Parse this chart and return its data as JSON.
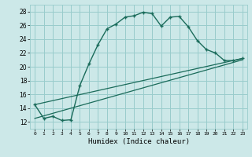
{
  "title": "",
  "xlabel": "Humidex (Indice chaleur)",
  "background_color": "#cce8e8",
  "grid_color": "#99cccc",
  "line_color": "#1a6b5a",
  "xlim": [
    -0.5,
    23.5
  ],
  "ylim": [
    11,
    29
  ],
  "xticks": [
    0,
    1,
    2,
    3,
    4,
    5,
    6,
    7,
    8,
    9,
    10,
    11,
    12,
    13,
    14,
    15,
    16,
    17,
    18,
    19,
    20,
    21,
    22,
    23
  ],
  "yticks": [
    12,
    14,
    16,
    18,
    20,
    22,
    24,
    26,
    28
  ],
  "series1_x": [
    0,
    1,
    2,
    3,
    4,
    5,
    6,
    7,
    8,
    9,
    10,
    11,
    12,
    13,
    14,
    15,
    16,
    17,
    18,
    19,
    20,
    21,
    22,
    23
  ],
  "series1_y": [
    14.5,
    12.5,
    12.8,
    12.2,
    12.3,
    17.3,
    20.4,
    23.2,
    25.5,
    26.2,
    27.2,
    27.4,
    27.9,
    27.7,
    25.9,
    27.2,
    27.3,
    25.8,
    23.8,
    22.5,
    22.0,
    20.9,
    20.9,
    21.2
  ],
  "series2_x": [
    0,
    23
  ],
  "series2_y": [
    14.5,
    21.2
  ],
  "series3_x": [
    0,
    23
  ],
  "series3_y": [
    12.5,
    21.0
  ]
}
